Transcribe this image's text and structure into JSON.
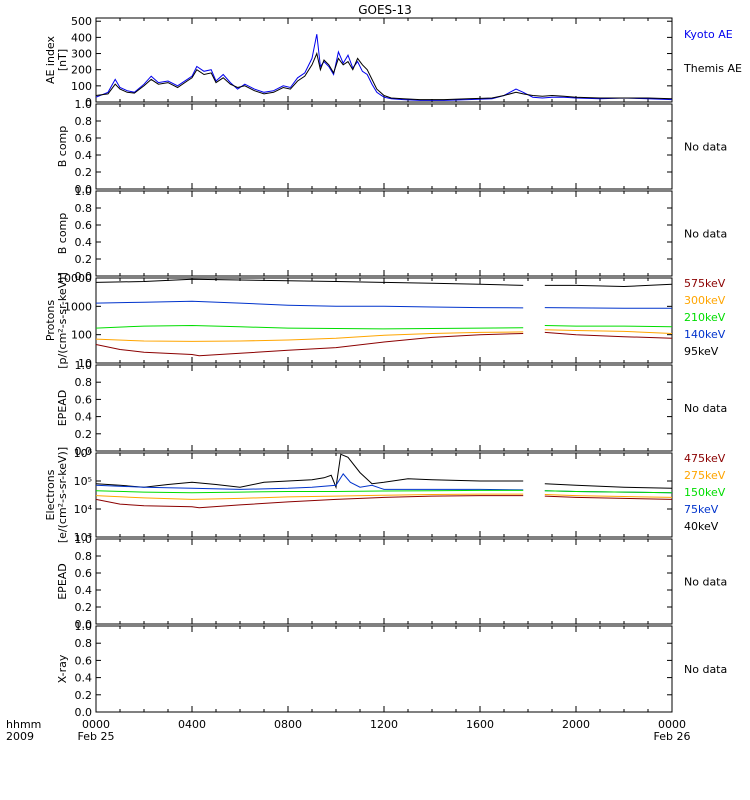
{
  "title": "GOES-13",
  "colors": {
    "axis": "#000000",
    "blue": "#0000ee",
    "black": "#000000",
    "darkred": "#8b0000",
    "orange": "#ffa500",
    "green": "#00dd00",
    "lightblue": "#0033cc"
  },
  "footer": {
    "label_line1": "hhmm",
    "label_line2": "2009",
    "date_start": "Feb 25",
    "date_end": "Feb 26"
  },
  "chart_data": {
    "type": "line",
    "x_ticks": [
      "0000",
      "0400",
      "0800",
      "1200",
      "1600",
      "2000",
      "0000"
    ],
    "x_range_hours": [
      0,
      24
    ],
    "panels": [
      {
        "id": "ae",
        "ylabel_lines": [
          "AE index",
          "[nT]"
        ],
        "scale": "linear",
        "ylim": [
          0,
          520
        ],
        "ticks": [
          "0",
          "100",
          "200",
          "300",
          "400",
          "500"
        ],
        "tick_values": [
          0,
          100,
          200,
          300,
          400,
          500
        ],
        "no_data": "",
        "legend": [
          "Kyoto AE",
          "Themis AE"
        ],
        "legend_colors": [
          "#0000ee",
          "#000000"
        ],
        "series": [
          {
            "name": "Kyoto AE",
            "color": "#0000ee",
            "x": [
              0,
              0.5,
              0.8,
              1.0,
              1.3,
              1.6,
              2.0,
              2.3,
              2.6,
              3.0,
              3.4,
              3.8,
              4.0,
              4.2,
              4.5,
              4.8,
              5.0,
              5.3,
              5.6,
              5.9,
              6.2,
              6.6,
              7.0,
              7.4,
              7.8,
              8.1,
              8.4,
              8.7,
              9.0,
              9.2,
              9.35,
              9.5,
              9.7,
              9.9,
              10.1,
              10.3,
              10.5,
              10.7,
              10.9,
              11.1,
              11.3,
              11.5,
              11.7,
              12.0,
              12.3,
              12.8,
              13.5,
              14.5,
              15.5,
              16.5,
              17.0,
              17.5,
              17.8,
              18.2,
              18.6,
              19.0,
              19.5,
              20.0,
              21.0,
              22.0,
              23.0,
              24.0
            ],
            "y": [
              30,
              60,
              140,
              90,
              70,
              60,
              110,
              160,
              120,
              130,
              100,
              140,
              160,
              220,
              190,
              200,
              130,
              170,
              120,
              80,
              110,
              80,
              60,
              70,
              100,
              90,
              150,
              180,
              270,
              420,
              220,
              250,
              220,
              170,
              310,
              240,
              290,
              210,
              250,
              190,
              170,
              110,
              60,
              30,
              20,
              15,
              10,
              10,
              15,
              20,
              40,
              80,
              60,
              30,
              25,
              30,
              30,
              25,
              20,
              25,
              20,
              15
            ]
          },
          {
            "name": "Themis AE",
            "color": "#000000",
            "x": [
              0,
              0.5,
              0.8,
              1.0,
              1.3,
              1.6,
              2.0,
              2.3,
              2.6,
              3.0,
              3.4,
              3.8,
              4.0,
              4.2,
              4.5,
              4.8,
              5.0,
              5.3,
              5.6,
              5.9,
              6.2,
              6.6,
              7.0,
              7.4,
              7.8,
              8.1,
              8.4,
              8.7,
              9.0,
              9.2,
              9.35,
              9.5,
              9.7,
              9.9,
              10.1,
              10.3,
              10.5,
              10.7,
              10.9,
              11.1,
              11.3,
              11.5,
              11.7,
              12.0,
              12.3,
              12.8,
              13.5,
              14.5,
              15.5,
              16.5,
              17.0,
              17.5,
              17.8,
              18.2,
              18.6,
              19.0,
              19.5,
              20.0,
              21.0,
              22.0,
              23.0,
              24.0
            ],
            "y": [
              40,
              50,
              110,
              80,
              60,
              55,
              100,
              140,
              110,
              120,
              90,
              130,
              150,
              200,
              170,
              180,
              120,
              150,
              110,
              90,
              100,
              70,
              50,
              60,
              90,
              80,
              130,
              160,
              230,
              300,
              200,
              260,
              230,
              180,
              270,
              230,
              250,
              200,
              270,
              230,
              200,
              140,
              80,
              40,
              25,
              20,
              15,
              15,
              20,
              25,
              40,
              60,
              50,
              40,
              35,
              40,
              35,
              30,
              25,
              25,
              25,
              20
            ]
          }
        ]
      },
      {
        "id": "bcomp1",
        "ylabel_lines": [
          "B comp"
        ],
        "scale": "linear",
        "ylim": [
          0,
          1
        ],
        "ticks": [
          "0.0",
          "0.2",
          "0.4",
          "0.6",
          "0.8",
          "1.0"
        ],
        "tick_values": [
          0,
          0.2,
          0.4,
          0.6,
          0.8,
          1.0
        ],
        "no_data": "No data",
        "legend": [],
        "legend_colors": [],
        "series": []
      },
      {
        "id": "bcomp2",
        "ylabel_lines": [
          "B comp"
        ],
        "scale": "linear",
        "ylim": [
          0,
          1
        ],
        "ticks": [
          "0.0",
          "0.2",
          "0.4",
          "0.6",
          "0.8",
          "1.0"
        ],
        "tick_values": [
          0,
          0.2,
          0.4,
          0.6,
          0.8,
          1.0
        ],
        "no_data": "No data",
        "legend": [],
        "legend_colors": [],
        "series": []
      },
      {
        "id": "protons",
        "ylabel_lines": [
          "Protons",
          "[p/(cm²-s-sr-keV)]"
        ],
        "scale": "log",
        "ylim": [
          10,
          10000
        ],
        "ticks": [
          "10",
          "100",
          "1000",
          "10000"
        ],
        "tick_values": [
          10,
          100,
          1000,
          10000
        ],
        "no_data": "",
        "gap": [
          17.8,
          18.7
        ],
        "legend": [
          "575keV",
          "300keV",
          "210keV",
          "140keV",
          "95keV"
        ],
        "legend_colors": [
          "#8b0000",
          "#ffa500",
          "#00dd00",
          "#0033cc",
          "#000000"
        ],
        "series": [
          {
            "name": "95keV",
            "color": "#000000",
            "x": [
              0,
              2,
              4,
              6,
              8,
              10,
              12,
              14,
              16,
              17.8,
              18.7,
              20,
              22,
              24
            ],
            "y": [
              7000,
              7500,
              9000,
              8500,
              8000,
              7500,
              7000,
              6500,
              6000,
              5500,
              5500,
              5500,
              5000,
              6000
            ]
          },
          {
            "name": "140keV",
            "color": "#0033cc",
            "x": [
              0,
              2,
              4,
              6,
              8,
              10,
              12,
              14,
              16,
              17.8,
              18.7,
              20,
              22,
              24
            ],
            "y": [
              1300,
              1400,
              1500,
              1300,
              1100,
              1000,
              1000,
              950,
              900,
              880,
              900,
              880,
              850,
              850
            ]
          },
          {
            "name": "210keV",
            "color": "#00dd00",
            "x": [
              0,
              2,
              4,
              6,
              8,
              10,
              12,
              14,
              16,
              17.8,
              18.7,
              20,
              22,
              24
            ],
            "y": [
              170,
              200,
              210,
              190,
              170,
              165,
              160,
              165,
              170,
              175,
              210,
              200,
              200,
              190
            ]
          },
          {
            "name": "300keV",
            "color": "#ffa500",
            "x": [
              0,
              2,
              4,
              6,
              8,
              10,
              12,
              14,
              16,
              17.8,
              18.7,
              20,
              22,
              24
            ],
            "y": [
              70,
              60,
              58,
              60,
              65,
              75,
              95,
              110,
              120,
              125,
              150,
              140,
              130,
              110
            ]
          },
          {
            "name": "575keV",
            "color": "#8b0000",
            "x": [
              0,
              1,
              2,
              4,
              4.3,
              6,
              8,
              10,
              12,
              14,
              16,
              17.8,
              18.7,
              20,
              22,
              24
            ],
            "y": [
              45,
              30,
              24,
              20,
              18,
              22,
              28,
              35,
              55,
              80,
              100,
              110,
              120,
              100,
              85,
              75
            ]
          }
        ]
      },
      {
        "id": "epead1",
        "ylabel_lines": [
          "EPEAD"
        ],
        "scale": "linear",
        "ylim": [
          0,
          1
        ],
        "ticks": [
          "0.0",
          "0.2",
          "0.4",
          "0.6",
          "0.8",
          "1.0"
        ],
        "tick_values": [
          0,
          0.2,
          0.4,
          0.6,
          0.8,
          1.0
        ],
        "no_data": "No data",
        "legend": [],
        "legend_colors": [],
        "series": []
      },
      {
        "id": "electrons",
        "ylabel_lines": [
          "Electrons",
          "[e/(cm²-s-sr-keV)]"
        ],
        "scale": "log",
        "ylim": [
          1000,
          1000000
        ],
        "ticks": [
          "10³",
          "10⁴",
          "10⁵",
          "10⁶"
        ],
        "tick_values": [
          1000,
          10000,
          100000,
          1000000
        ],
        "no_data": "",
        "gap": [
          17.8,
          18.7
        ],
        "legend": [
          "475keV",
          "275keV",
          "150keV",
          "75keV",
          "40keV"
        ],
        "legend_colors": [
          "#8b0000",
          "#ffa500",
          "#00dd00",
          "#0033cc",
          "#000000"
        ],
        "series": [
          {
            "name": "40keV",
            "color": "#000000",
            "x": [
              0,
              1,
              2,
              3,
              4,
              5,
              6,
              7,
              8,
              9,
              9.5,
              9.8,
              10.0,
              10.2,
              10.5,
              11.0,
              11.5,
              12.0,
              13.0,
              14.0,
              16.0,
              17.8,
              18.7,
              20.0,
              22.0,
              24.0
            ],
            "y": [
              80000,
              70000,
              60000,
              75000,
              90000,
              75000,
              60000,
              90000,
              100000,
              110000,
              130000,
              160000,
              60000,
              900000,
              700000,
              200000,
              80000,
              90000,
              120000,
              110000,
              100000,
              100000,
              80000,
              70000,
              60000,
              55000
            ]
          },
          {
            "name": "75keV",
            "color": "#0033cc",
            "x": [
              0,
              2,
              4,
              6,
              8,
              9,
              10,
              10.3,
              10.6,
              11.0,
              11.5,
              12.0,
              14.0,
              16.0,
              17.8,
              18.7,
              20.0,
              22.0,
              24.0
            ],
            "y": [
              70000,
              60000,
              55000,
              50000,
              55000,
              60000,
              70000,
              180000,
              90000,
              60000,
              70000,
              50000,
              50000,
              50000,
              48000,
              45000,
              42000,
              40000,
              38000
            ]
          },
          {
            "name": "150keV",
            "color": "#00dd00",
            "x": [
              0,
              2,
              4,
              6,
              8,
              10,
              12,
              14,
              16,
              17.8,
              18.7,
              20,
              22,
              24
            ],
            "y": [
              45000,
              40000,
              38000,
              40000,
              42000,
              42000,
              44000,
              45000,
              46000,
              46000,
              45000,
              42000,
              40000,
              38000
            ]
          },
          {
            "name": "275keV",
            "color": "#ffa500",
            "x": [
              0,
              2,
              4,
              6,
              8,
              10,
              12,
              14,
              16,
              17.8,
              18.7,
              20,
              22,
              24
            ],
            "y": [
              30000,
              25000,
              22000,
              24000,
              27000,
              29000,
              31000,
              33000,
              34000,
              34000,
              33000,
              30000,
              28000,
              26000
            ]
          },
          {
            "name": "475keV",
            "color": "#8b0000",
            "x": [
              0,
              1,
              2,
              4,
              4.3,
              6,
              8,
              10,
              12,
              14,
              16,
              17.8,
              18.7,
              20,
              22,
              24
            ],
            "y": [
              22000,
              15000,
              13000,
              12000,
              11000,
              14000,
              18000,
              22000,
              26000,
              29000,
              30000,
              30000,
              29000,
              26000,
              24000,
              22000
            ]
          }
        ]
      },
      {
        "id": "epead2",
        "ylabel_lines": [
          "EPEAD"
        ],
        "scale": "linear",
        "ylim": [
          0,
          1
        ],
        "ticks": [
          "0.0",
          "0.2",
          "0.4",
          "0.6",
          "0.8",
          "1.0"
        ],
        "tick_values": [
          0,
          0.2,
          0.4,
          0.6,
          0.8,
          1.0
        ],
        "no_data": "No data",
        "legend": [],
        "legend_colors": [],
        "series": []
      },
      {
        "id": "xray",
        "ylabel_lines": [
          "X-ray"
        ],
        "scale": "linear",
        "ylim": [
          0,
          1
        ],
        "ticks": [
          "0.0",
          "0.2",
          "0.4",
          "0.6",
          "0.8",
          "1.0"
        ],
        "tick_values": [
          0,
          0.2,
          0.4,
          0.6,
          0.8,
          1.0
        ],
        "no_data": "No data",
        "legend": [],
        "legend_colors": [],
        "series": []
      }
    ]
  }
}
